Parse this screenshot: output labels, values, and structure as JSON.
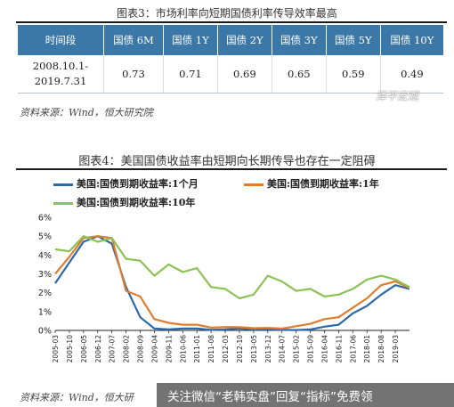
{
  "figure3": {
    "title": "图表3：市场利率向短期国债利率传导效率最高",
    "headers": [
      "时间段",
      "国债 6M",
      "国债 1Y",
      "国债 2Y",
      "国债 3Y",
      "国债 5Y",
      "国债 10Y"
    ],
    "period_line1": "2008.10.1-",
    "period_line2": "2019.7.31",
    "values": [
      "0.73",
      "0.71",
      "0.69",
      "0.65",
      "0.59",
      "0.49"
    ],
    "source": "资料来源：Wind，恒大研究院",
    "watermark": "泽平宏观"
  },
  "figure4": {
    "title": "图表4：美国国债收益率由短期向长期传导也存在一定阻碍",
    "source": "资料来源：Wind，恒大研",
    "banner": "关注微信“老韩实盘”回复“指标”免费领"
  },
  "chart_data": {
    "type": "line",
    "title": "",
    "xlabel": "",
    "ylabel": "",
    "ylim": [
      0,
      6
    ],
    "yticks": [
      "0%",
      "1%",
      "2%",
      "3%",
      "4%",
      "5%",
      "6%"
    ],
    "xtick_labels": [
      "2005-03",
      "2005-10",
      "2006-05",
      "2006-12",
      "2007-07",
      "2008-02",
      "2008-09",
      "2009-04",
      "2009-11",
      "2010-06",
      "2011-01",
      "2011-08",
      "2012-03",
      "2012-10",
      "2013-05",
      "2013-12",
      "2014-07",
      "2015-02",
      "2015-09",
      "2016-04",
      "2016-11",
      "2017-06",
      "2018-01",
      "2018-08",
      "2019-03"
    ],
    "x": [
      "2005-03",
      "2005-10",
      "2006-05",
      "2006-12",
      "2007-07",
      "2008-02",
      "2008-09",
      "2009-04",
      "2009-11",
      "2010-06",
      "2011-01",
      "2011-08",
      "2012-03",
      "2012-10",
      "2013-05",
      "2013-12",
      "2014-07",
      "2015-02",
      "2015-09",
      "2016-04",
      "2016-11",
      "2017-06",
      "2018-01",
      "2018-08",
      "2019-03",
      "2019-07"
    ],
    "grid": false,
    "legend_position": "top",
    "series": [
      {
        "name": "美国:国债到期收益率:1个月",
        "color": "#2e6aa9",
        "values": [
          2.5,
          3.6,
          4.7,
          5.0,
          4.6,
          2.3,
          0.7,
          0.1,
          0.05,
          0.1,
          0.1,
          0.03,
          0.05,
          0.1,
          0.04,
          0.05,
          0.03,
          0.02,
          0.05,
          0.2,
          0.3,
          0.9,
          1.3,
          1.9,
          2.4,
          2.2
        ]
      },
      {
        "name": "美国:国债到期收益率:1年",
        "color": "#e07d2c",
        "values": [
          3.0,
          3.9,
          4.9,
          5.0,
          4.9,
          2.1,
          1.8,
          0.6,
          0.4,
          0.3,
          0.3,
          0.15,
          0.18,
          0.17,
          0.12,
          0.13,
          0.1,
          0.22,
          0.35,
          0.6,
          0.7,
          1.2,
          1.7,
          2.4,
          2.6,
          2.25
        ]
      },
      {
        "name": "美国:国债到期收益率:10年",
        "color": "#8dc256",
        "values": [
          4.3,
          4.2,
          5.0,
          4.7,
          4.9,
          3.8,
          3.7,
          2.9,
          3.5,
          3.1,
          3.3,
          2.3,
          2.2,
          1.7,
          1.9,
          2.9,
          2.6,
          2.1,
          2.2,
          1.8,
          1.9,
          2.2,
          2.7,
          2.9,
          2.7,
          2.3
        ]
      }
    ]
  }
}
